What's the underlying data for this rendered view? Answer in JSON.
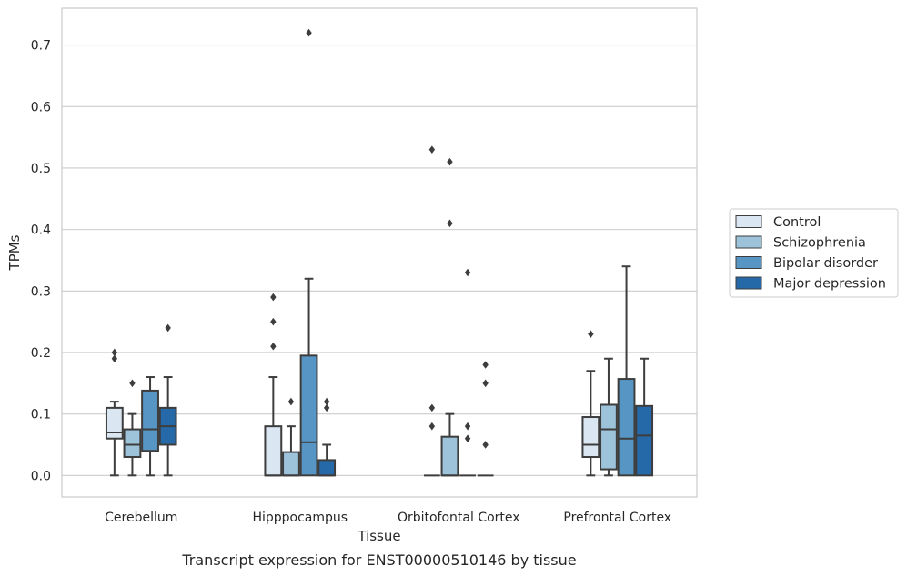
{
  "caption": "Transcript expression for ENST00000510146 by tissue",
  "chart_data": {
    "type": "box",
    "xlabel": "Tissue",
    "ylabel": "TPMs",
    "ylim": [
      -0.035,
      0.76
    ],
    "yticks": [
      "0.0",
      "0.1",
      "0.2",
      "0.3",
      "0.4",
      "0.5",
      "0.6",
      "0.7"
    ],
    "ytick_values": [
      0,
      0.1,
      0.2,
      0.3,
      0.4,
      0.5,
      0.6,
      0.7
    ],
    "grid": "horizontal",
    "legend_position": "right",
    "categories": [
      "Cerebellum",
      "Hipppocampus",
      "Orbitofontal Cortex",
      "Prefrontal Cortex"
    ],
    "series": [
      {
        "name": "Control",
        "color": "#dbe6f3",
        "boxes": [
          {
            "whislo": 0,
            "q1": 0.06,
            "med": 0.07,
            "q3": 0.11,
            "whishi": 0.12,
            "fliers": [
              0.19,
              0.2
            ]
          },
          {
            "whislo": 0,
            "q1": 0,
            "med": 0,
            "q3": 0.08,
            "whishi": 0.16,
            "fliers": [
              0.21,
              0.25,
              0.29
            ]
          },
          {
            "whislo": 0,
            "q1": 0,
            "med": 0,
            "q3": 0,
            "whishi": 0,
            "fliers": [
              0.08,
              0.11,
              0.53
            ]
          },
          {
            "whislo": 0,
            "q1": 0.03,
            "med": 0.05,
            "q3": 0.095,
            "whishi": 0.17,
            "fliers": [
              0.23
            ]
          }
        ]
      },
      {
        "name": "Schizophrenia",
        "color": "#9dc3db",
        "boxes": [
          {
            "whislo": 0,
            "q1": 0.03,
            "med": 0.05,
            "q3": 0.075,
            "whishi": 0.1,
            "fliers": [
              0.15
            ]
          },
          {
            "whislo": 0,
            "q1": 0,
            "med": 0,
            "q3": 0.038,
            "whishi": 0.08,
            "fliers": [
              0.12
            ]
          },
          {
            "whislo": 0,
            "q1": 0,
            "med": 0,
            "q3": 0.063,
            "whishi": 0.1,
            "fliers": [
              0.41,
              0.51
            ]
          },
          {
            "whislo": 0,
            "q1": 0.01,
            "med": 0.075,
            "q3": 0.115,
            "whishi": 0.19,
            "fliers": []
          }
        ]
      },
      {
        "name": "Bipolar disorder",
        "color": "#5796c4",
        "boxes": [
          {
            "whislo": 0,
            "q1": 0.04,
            "med": 0.075,
            "q3": 0.138,
            "whishi": 0.16,
            "fliers": []
          },
          {
            "whislo": 0,
            "q1": 0,
            "med": 0.054,
            "q3": 0.195,
            "whishi": 0.32,
            "fliers": [
              0.72
            ]
          },
          {
            "whislo": 0,
            "q1": 0,
            "med": 0,
            "q3": 0,
            "whishi": 0,
            "fliers": [
              0.06,
              0.08,
              0.33
            ]
          },
          {
            "whislo": 0,
            "q1": 0,
            "med": 0.06,
            "q3": 0.157,
            "whishi": 0.34,
            "fliers": []
          }
        ]
      },
      {
        "name": "Major depression",
        "color": "#2669a8",
        "boxes": [
          {
            "whislo": 0,
            "q1": 0.05,
            "med": 0.08,
            "q3": 0.11,
            "whishi": 0.16,
            "fliers": [
              0.24
            ]
          },
          {
            "whislo": 0,
            "q1": 0,
            "med": 0,
            "q3": 0.025,
            "whishi": 0.05,
            "fliers": [
              0.11,
              0.12
            ]
          },
          {
            "whislo": 0,
            "q1": 0,
            "med": 0,
            "q3": 0,
            "whishi": 0,
            "fliers": [
              0.05,
              0.15,
              0.18
            ]
          },
          {
            "whislo": 0,
            "q1": 0,
            "med": 0.065,
            "q3": 0.113,
            "whishi": 0.19,
            "fliers": []
          }
        ]
      }
    ]
  }
}
